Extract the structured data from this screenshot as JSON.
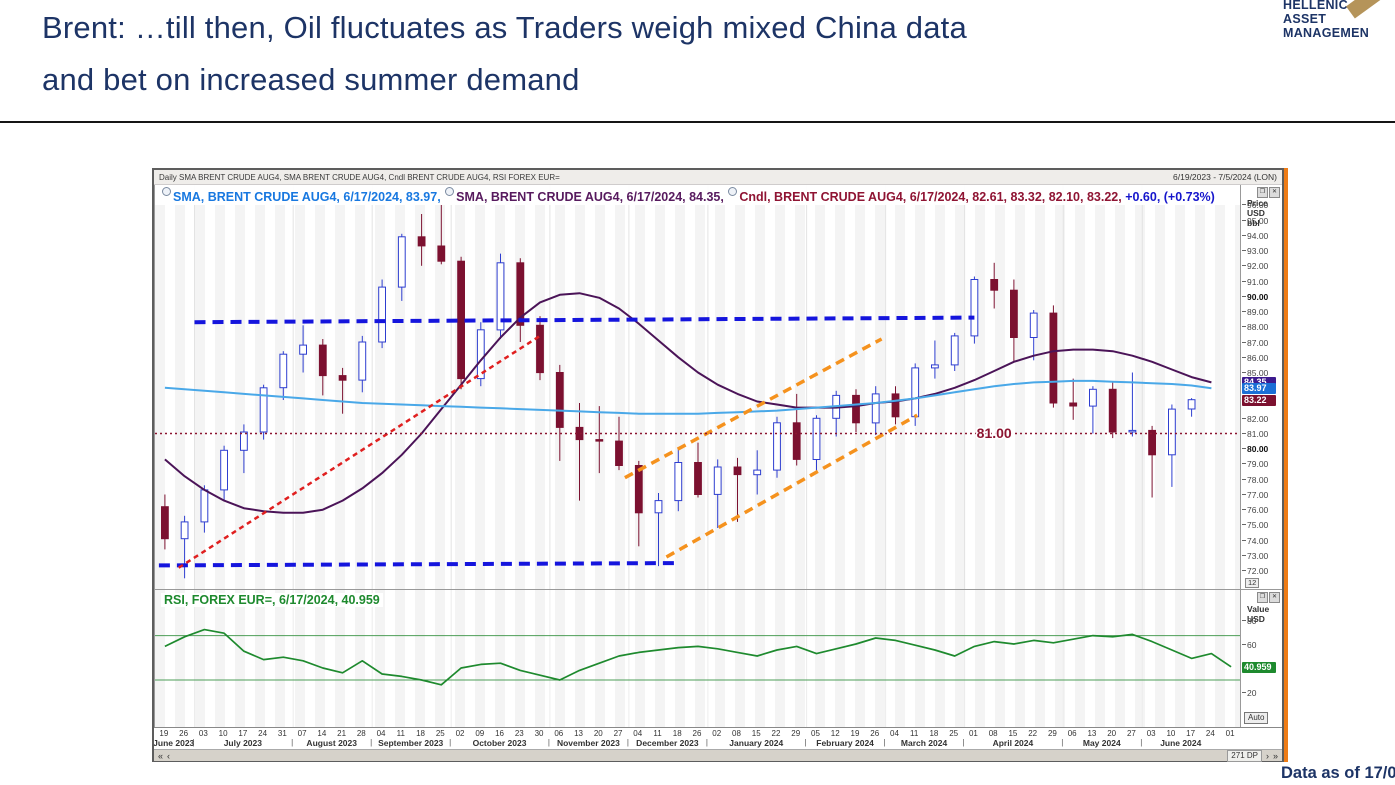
{
  "slide": {
    "title_line1": "Brent: …till then, Oil fluctuates as Traders weigh mixed China data",
    "title_line2": "and bet on increased summer demand",
    "logo": {
      "line1": "HELLENIC",
      "line2": "ASSET",
      "line3": "MANAGEMEN",
      "gold_hex": "#b5945a"
    },
    "footer_note": "Data as of 17/0"
  },
  "chart_window": {
    "titlebar": {
      "left": "Daily SMA BRENT CRUDE AUG4, SMA BRENT CRUDE AUG4, Cndl BRENT CRUDE AUG4, RSI FOREX EUR=",
      "right": "6/19/2023 - 7/5/2024 (LON)"
    },
    "legend_items": [
      {
        "badge": "anchor-badge",
        "text": "SMA, BRENT CRUDE AUG4, 6/17/2024, 83.97,",
        "color": "#1878e0"
      },
      {
        "badge": "anchor-badge",
        "text": "SMA, BRENT CRUDE AUG4, 6/17/2024, 84.35,",
        "color": "#571a5e"
      },
      {
        "badge": "anchor-badge",
        "text": "Cndl, BRENT CRUDE AUG4, 6/17/2024, 82.61, 83.32, 82.10, 83.22,",
        "color": "#8f1433"
      },
      {
        "badge": null,
        "text": "+0.60, (+0.73%)",
        "color": "#1616cc"
      }
    ],
    "rsi_legend": "RSI, FOREX EUR=, 6/17/2024, 40.959",
    "price_axis": {
      "header_lines": [
        "Price",
        "USD",
        "bbl"
      ],
      "ticks": [
        "96.00",
        "95.00",
        "94.00",
        "93.00",
        "92.00",
        "91.00",
        "90.00",
        "89.00",
        "88.00",
        "87.00",
        "86.00",
        "85.00",
        "82.00",
        "81.00",
        "80.00",
        "79.00",
        "78.00",
        "77.00",
        "76.00",
        "75.00",
        "74.00",
        "73.00",
        "72.00"
      ],
      "bold_ticks": [
        "90.00",
        "80.00"
      ],
      "tags": [
        {
          "label": "84.35",
          "v": 84.35,
          "bg": "#3d1a8e"
        },
        {
          "label": "83.97",
          "v": 83.97,
          "bg": "#1b6fd6"
        },
        {
          "label": "83.22",
          "v": 83.22,
          "bg": "#7c1130"
        }
      ],
      "badge": "12"
    },
    "rsi_axis": {
      "header_lines": [
        "Value",
        "USD"
      ],
      "ticks": [
        "80",
        "60",
        "20"
      ],
      "tag": {
        "label": "40.959",
        "v": 40.959,
        "bg": "#1e8a2e"
      },
      "auto_label": "Auto"
    },
    "window_icons": {
      "restore": "❐",
      "close": "✕"
    },
    "xaxis": {
      "week_labels": [
        "19",
        "26",
        "03",
        "10",
        "17",
        "24",
        "31",
        "07",
        "14",
        "21",
        "28",
        "04",
        "11",
        "18",
        "25",
        "02",
        "09",
        "16",
        "23",
        "30",
        "06",
        "13",
        "20",
        "27",
        "04",
        "11",
        "18",
        "26",
        "02",
        "08",
        "15",
        "22",
        "29",
        "05",
        "12",
        "19",
        "26",
        "04",
        "11",
        "18",
        "25",
        "01",
        "08",
        "15",
        "22",
        "29",
        "06",
        "13",
        "20",
        "27",
        "03",
        "10",
        "17",
        "24",
        "01"
      ],
      "months": [
        {
          "label": "June 2023",
          "start": 0,
          "span": 2
        },
        {
          "label": "July 2023",
          "start": 2,
          "span": 5
        },
        {
          "label": "August 2023",
          "start": 7,
          "span": 4
        },
        {
          "label": "September 2023",
          "start": 11,
          "span": 4
        },
        {
          "label": "October 2023",
          "start": 15,
          "span": 5
        },
        {
          "label": "November 2023",
          "start": 20,
          "span": 4
        },
        {
          "label": "December 2023",
          "start": 24,
          "span": 4
        },
        {
          "label": "January 2024",
          "start": 28,
          "span": 5
        },
        {
          "label": "February 2024",
          "start": 33,
          "span": 4
        },
        {
          "label": "March 2024",
          "start": 37,
          "span": 4
        },
        {
          "label": "April 2024",
          "start": 41,
          "span": 5
        },
        {
          "label": "May 2024",
          "start": 46,
          "span": 4
        },
        {
          "label": "June 2024",
          "start": 50,
          "span": 4
        }
      ]
    },
    "scrollbar": {
      "left_buttons": [
        "«",
        "‹"
      ],
      "dp_label": "271 DP",
      "right_buttons": [
        "›",
        "»"
      ]
    }
  },
  "chart_data": [
    {
      "type": "candlestick",
      "instrument": "BRENT CRUDE AUG4",
      "interval": "Daily",
      "date_range": "6/19/2023 - 7/5/2024 (LON)",
      "last_update": "6/17/2024",
      "last_candle": {
        "open": 82.61,
        "high": 83.32,
        "low": 82.1,
        "close": 83.22,
        "change": "+0.60",
        "change_pct": "(+0.73%)"
      },
      "sma_last_values": {
        "blue": 83.97,
        "purple": 84.35
      },
      "ylabel": "Price USD bbl",
      "ylim": [
        70.8,
        97.3
      ],
      "note": "OHLC and indicator paths approximated at weekly resolution from daily chart pixels",
      "week_labels": [
        "19",
        "26",
        "03",
        "10",
        "17",
        "24",
        "31",
        "07",
        "14",
        "21",
        "28",
        "04",
        "11",
        "18",
        "25",
        "02",
        "09",
        "16",
        "23",
        "30",
        "06",
        "13",
        "20",
        "27",
        "04",
        "11",
        "18",
        "26",
        "02",
        "08",
        "15",
        "22",
        "29",
        "05",
        "12",
        "19",
        "26",
        "04",
        "11",
        "18",
        "25",
        "01",
        "08",
        "15",
        "22",
        "29",
        "06",
        "13",
        "20",
        "27",
        "03",
        "10",
        "17",
        "24",
        "01"
      ],
      "ohlc_weekly_approx": [
        [
          76.2,
          77.0,
          73.4,
          74.1
        ],
        [
          74.1,
          75.6,
          71.5,
          75.2
        ],
        [
          75.2,
          77.6,
          74.5,
          77.3
        ],
        [
          77.3,
          80.2,
          76.6,
          79.9
        ],
        [
          79.9,
          81.6,
          78.4,
          81.1
        ],
        [
          81.1,
          84.2,
          80.6,
          84.0
        ],
        [
          84.0,
          86.4,
          83.2,
          86.2
        ],
        [
          86.2,
          88.1,
          85.0,
          86.8
        ],
        [
          86.8,
          87.2,
          83.5,
          84.8
        ],
        [
          84.8,
          85.3,
          82.3,
          84.5
        ],
        [
          84.5,
          87.4,
          83.7,
          87.0
        ],
        [
          87.0,
          91.1,
          86.6,
          90.6
        ],
        [
          90.6,
          94.1,
          89.7,
          93.9
        ],
        [
          93.9,
          95.4,
          92.0,
          93.3
        ],
        [
          93.3,
          96.0,
          92.1,
          92.3
        ],
        [
          92.3,
          92.6,
          83.9,
          84.6
        ],
        [
          84.6,
          88.3,
          84.1,
          87.8
        ],
        [
          87.8,
          92.8,
          87.2,
          92.2
        ],
        [
          92.2,
          92.5,
          87.0,
          88.1
        ],
        [
          88.1,
          88.7,
          84.5,
          85.0
        ],
        [
          85.0,
          85.5,
          79.2,
          81.4
        ],
        [
          81.4,
          83.0,
          76.6,
          80.6
        ],
        [
          80.6,
          82.8,
          78.4,
          80.5
        ],
        [
          80.5,
          82.1,
          78.6,
          78.9
        ],
        [
          78.9,
          79.2,
          73.6,
          75.8
        ],
        [
          75.8,
          77.1,
          72.3,
          76.6
        ],
        [
          76.6,
          80.1,
          75.9,
          79.1
        ],
        [
          79.1,
          80.4,
          76.8,
          77.0
        ],
        [
          77.0,
          79.3,
          74.8,
          78.8
        ],
        [
          78.8,
          79.4,
          75.2,
          78.3
        ],
        [
          78.3,
          79.9,
          77.0,
          78.6
        ],
        [
          78.6,
          82.1,
          78.1,
          81.7
        ],
        [
          81.7,
          83.6,
          78.9,
          79.3
        ],
        [
          79.3,
          82.2,
          78.5,
          82.0
        ],
        [
          82.0,
          83.8,
          80.8,
          83.5
        ],
        [
          83.5,
          83.9,
          81.1,
          81.7
        ],
        [
          81.7,
          84.1,
          80.9,
          83.6
        ],
        [
          83.6,
          84.1,
          81.6,
          82.1
        ],
        [
          82.1,
          85.6,
          81.5,
          85.3
        ],
        [
          85.3,
          87.1,
          84.6,
          85.5
        ],
        [
          85.5,
          87.6,
          85.1,
          87.4
        ],
        [
          87.4,
          91.3,
          86.9,
          91.1
        ],
        [
          91.1,
          92.2,
          89.2,
          90.4
        ],
        [
          90.4,
          91.1,
          85.7,
          87.3
        ],
        [
          87.3,
          89.1,
          85.8,
          88.9
        ],
        [
          88.9,
          89.4,
          82.7,
          83.0
        ],
        [
          83.0,
          84.6,
          81.9,
          82.8
        ],
        [
          82.8,
          84.1,
          81.0,
          83.9
        ],
        [
          83.9,
          84.4,
          80.7,
          81.1
        ],
        [
          81.1,
          85.0,
          80.8,
          81.2
        ],
        [
          81.2,
          81.5,
          76.8,
          79.6
        ],
        [
          79.6,
          82.9,
          77.5,
          82.6
        ],
        [
          82.61,
          83.32,
          82.1,
          83.22
        ]
      ],
      "sma_purple_weekly": [
        79.3,
        78.2,
        77.3,
        76.6,
        76.1,
        75.9,
        75.8,
        75.8,
        76.0,
        76.6,
        77.4,
        78.4,
        79.6,
        81.0,
        82.6,
        84.2,
        85.8,
        87.3,
        88.6,
        89.6,
        90.1,
        90.2,
        89.9,
        89.2,
        88.2,
        87.1,
        86.0,
        85.0,
        84.2,
        83.6,
        83.1,
        82.9,
        82.7,
        82.7,
        82.7,
        82.8,
        83.0,
        83.1,
        83.3,
        83.6,
        84.0,
        84.5,
        85.1,
        85.7,
        86.1,
        86.4,
        86.5,
        86.5,
        86.4,
        86.1,
        85.7,
        85.2,
        84.7,
        84.35
      ],
      "sma_blue_weekly": [
        84.0,
        83.9,
        83.8,
        83.7,
        83.6,
        83.5,
        83.4,
        83.3,
        83.2,
        83.1,
        83.0,
        82.95,
        82.9,
        82.85,
        82.8,
        82.75,
        82.7,
        82.65,
        82.6,
        82.55,
        82.5,
        82.45,
        82.4,
        82.35,
        82.3,
        82.3,
        82.3,
        82.3,
        82.35,
        82.4,
        82.45,
        82.5,
        82.6,
        82.7,
        82.8,
        82.9,
        83.0,
        83.15,
        83.3,
        83.5,
        83.7,
        83.9,
        84.1,
        84.25,
        84.35,
        84.4,
        84.45,
        84.45,
        84.4,
        84.35,
        84.3,
        84.25,
        84.15,
        83.97
      ],
      "colors": {
        "up": "#2e3ed0",
        "down": "#7c1130",
        "sma_blue": "#49a8e8",
        "sma_purple": "#4b1458"
      },
      "annotations": [
        {
          "name": "resistance-line-blue",
          "type": "segment",
          "color": "#1515dd",
          "dash": "11,7",
          "width": 4,
          "x0": 2.0,
          "v0": 88.3,
          "x1": 41.5,
          "v1": 88.6
        },
        {
          "name": "support-line-blue",
          "type": "segment",
          "color": "#1515dd",
          "dash": "11,7",
          "width": 4,
          "x0": 0.2,
          "v0": 72.35,
          "x1": 26.3,
          "v1": 72.5
        },
        {
          "name": "uptrend-line-red",
          "type": "segment",
          "color": "#e02020",
          "dash": "5,4",
          "width": 2.5,
          "x0": 1.2,
          "v0": 72.2,
          "x1": 19.5,
          "v1": 87.4
        },
        {
          "name": "channel-upper-orange",
          "type": "segment",
          "color": "#f5921e",
          "dash": "9,6",
          "width": 3.5,
          "x0": 23.8,
          "v0": 78.1,
          "x1": 36.8,
          "v1": 87.2
        },
        {
          "name": "channel-lower-orange",
          "type": "segment",
          "color": "#f5921e",
          "dash": "9,6",
          "width": 3.5,
          "x0": 25.9,
          "v0": 72.9,
          "x1": 38.6,
          "v1": 82.2
        },
        {
          "name": "level-81-dotted",
          "type": "hline",
          "color": "#8c1531",
          "dash": "2,3",
          "width": 1.5,
          "v": 81.0,
          "label": "81.00",
          "label_x": 42.5
        }
      ]
    },
    {
      "type": "line",
      "name": "RSI, FOREX EUR=",
      "last_update": "6/17/2024",
      "last_value": 40.959,
      "ylabel": "Value USD",
      "ylim": [
        -10,
        105
      ],
      "bands": [
        67,
        30
      ],
      "color": "#1e8a2e",
      "note": "RSI path approximated at weekly resolution",
      "values_weekly_approx": [
        58,
        66,
        72,
        69,
        54,
        47,
        49,
        46,
        40,
        36,
        46,
        35,
        33,
        30,
        26,
        40,
        43,
        44,
        38,
        34,
        30,
        38,
        44,
        50,
        53,
        55,
        57,
        58,
        56,
        53,
        50,
        55,
        58,
        52,
        56,
        60,
        65,
        63,
        59,
        55,
        50,
        58,
        62,
        60,
        63,
        61,
        64,
        67,
        66,
        68,
        62,
        55,
        48,
        52,
        41
      ]
    }
  ]
}
